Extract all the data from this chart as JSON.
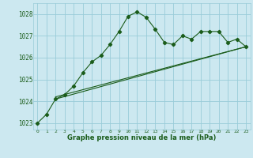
{
  "title": "Graphe pression niveau de la mer (hPa)",
  "background_color": "#cce8f0",
  "grid_color": "#99ccd9",
  "line_color": "#1a5c1a",
  "tick_color": "#1a5c1a",
  "xlim": [
    -0.5,
    23.5
  ],
  "ylim": [
    1022.7,
    1028.5
  ],
  "yticks": [
    1023,
    1024,
    1025,
    1026,
    1027,
    1028
  ],
  "xticks": [
    0,
    1,
    2,
    3,
    4,
    5,
    6,
    7,
    8,
    9,
    10,
    11,
    12,
    13,
    14,
    15,
    16,
    17,
    18,
    19,
    20,
    21,
    22,
    23
  ],
  "series1_x": [
    0,
    1,
    2,
    3,
    4,
    5,
    6,
    7,
    8,
    9,
    10,
    11,
    12,
    13,
    14,
    15,
    16,
    17,
    18,
    19,
    20,
    21,
    22,
    23
  ],
  "series1_y": [
    1023.0,
    1023.4,
    1024.1,
    1024.3,
    1024.7,
    1025.3,
    1025.8,
    1026.1,
    1026.6,
    1027.2,
    1027.9,
    1028.1,
    1027.85,
    1027.3,
    1026.7,
    1026.6,
    1027.0,
    1026.85,
    1027.2,
    1027.2,
    1027.2,
    1026.7,
    1026.85,
    1026.5
  ],
  "series2_x": [
    2,
    23
  ],
  "series2_y": [
    1024.2,
    1026.5
  ],
  "series3_x": [
    2,
    23
  ],
  "series3_y": [
    1024.1,
    1026.5
  ],
  "figsize": [
    3.2,
    2.0
  ],
  "dpi": 100
}
